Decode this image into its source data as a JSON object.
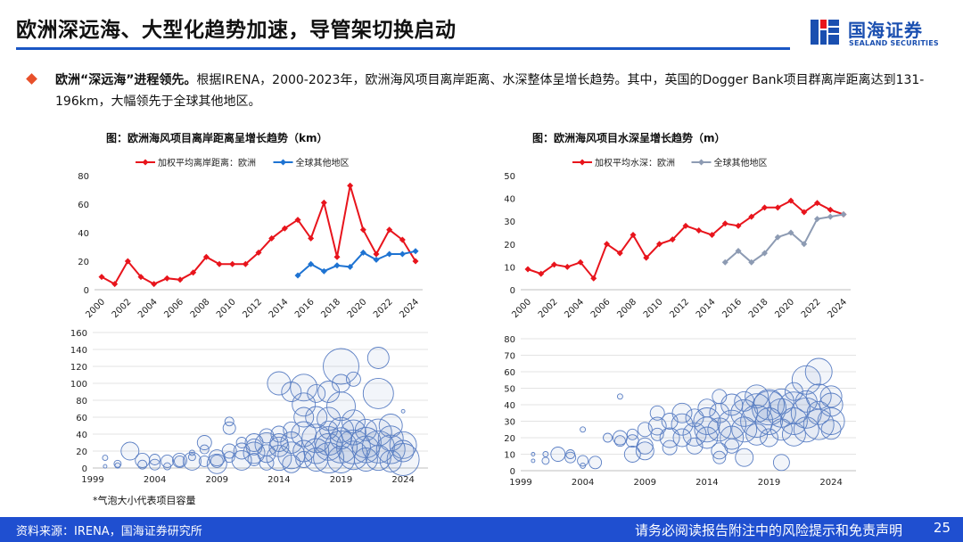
{
  "header": {
    "title": "欧洲深远海、大型化趋势加速，导管架切换启动",
    "logo_cn": "国海证券",
    "logo_en": "SEALAND SECURITIES"
  },
  "bullet": {
    "lead": "欧洲“深远海”进程领先。",
    "body": "根据IRENA，2000-2023年，欧洲海风项目离岸距离、水深整体呈增长趋势。其中，英国的Dogger Bank项目群离岸距离达到131-196km，大幅领先于全球其他地区。"
  },
  "footnote": "*气泡大小代表项目容量",
  "footer": {
    "source": "资料来源：IRENA，国海证券研究所",
    "disclaimer": "请务必阅读报告附注中的风险提示和免责声明",
    "page": "25"
  },
  "colors": {
    "brand": "#1f4fd0",
    "europe": "#e8141c",
    "rest_blue": "#1e73d2",
    "rest_gray": "#8d9bb3",
    "bubble": "#5b7fc4"
  },
  "chart_data": [
    {
      "type": "line",
      "title": "图：欧洲海风项目离岸距离呈增长趋势（km）",
      "ylim": [
        0,
        80
      ],
      "yticks": [
        0,
        20,
        40,
        60,
        80
      ],
      "x": [
        2000,
        2001,
        2002,
        2003,
        2004,
        2005,
        2006,
        2007,
        2008,
        2009,
        2010,
        2011,
        2012,
        2013,
        2014,
        2015,
        2016,
        2017,
        2018,
        2019,
        2020,
        2021,
        2022,
        2023,
        2024
      ],
      "xticks": [
        "2000",
        "2002",
        "2004",
        "2006",
        "2008",
        "2010",
        "2012",
        "2014",
        "2016",
        "2018",
        "2020",
        "2022",
        "2024"
      ],
      "legend_position": "top",
      "series": [
        {
          "name": "加权平均离岸距离：欧洲",
          "color": "#e8141c",
          "marker": "diamond",
          "values": [
            9,
            4,
            20,
            9,
            4,
            8,
            7,
            12,
            23,
            18,
            18,
            18,
            26,
            36,
            43,
            49,
            36,
            61,
            23,
            73,
            42,
            25,
            42,
            35,
            20
          ]
        },
        {
          "name": "全球其他地区",
          "color": "#1e73d2",
          "marker": "diamond",
          "values": [
            null,
            null,
            null,
            null,
            null,
            null,
            null,
            null,
            null,
            null,
            null,
            null,
            null,
            null,
            null,
            10,
            18,
            13,
            17,
            16,
            26,
            21,
            25,
            25,
            27
          ]
        }
      ]
    },
    {
      "type": "line",
      "title": "图：欧洲海风项目水深呈增长趋势（m）",
      "ylim": [
        0,
        50
      ],
      "yticks": [
        0,
        10,
        20,
        30,
        40,
        50
      ],
      "x": [
        2000,
        2001,
        2002,
        2003,
        2004,
        2005,
        2006,
        2007,
        2008,
        2009,
        2010,
        2011,
        2012,
        2013,
        2014,
        2015,
        2016,
        2017,
        2018,
        2019,
        2020,
        2021,
        2022,
        2023,
        2024
      ],
      "xticks": [
        "2000",
        "2002",
        "2004",
        "2006",
        "2008",
        "2010",
        "2012",
        "2014",
        "2016",
        "2018",
        "2020",
        "2022",
        "2024"
      ],
      "legend_position": "top",
      "series": [
        {
          "name": "加权平均水深：欧洲",
          "color": "#e8141c",
          "marker": "diamond",
          "values": [
            9,
            7,
            11,
            10,
            12,
            5,
            20,
            16,
            24,
            14,
            20,
            22,
            28,
            26,
            24,
            29,
            28,
            32,
            36,
            36,
            39,
            34,
            38,
            35,
            33
          ]
        },
        {
          "name": "全球其他地区",
          "color": "#8d9bb3",
          "marker": "diamond",
          "values": [
            null,
            null,
            null,
            null,
            null,
            null,
            null,
            null,
            null,
            null,
            null,
            null,
            null,
            null,
            null,
            12,
            17,
            12,
            16,
            23,
            25,
            20,
            31,
            32,
            33
          ]
        }
      ]
    },
    {
      "type": "scatter",
      "subtype": "bubble",
      "xlim": [
        1999,
        2026
      ],
      "ylim": [
        0,
        160
      ],
      "xticks": [
        1999,
        2004,
        2009,
        2014,
        2019,
        2024
      ],
      "yticks": [
        0,
        20,
        40,
        60,
        80,
        100,
        120,
        140,
        160
      ],
      "points": [
        [
          2000,
          12,
          3
        ],
        [
          2000,
          2,
          2
        ],
        [
          2001,
          5,
          4
        ],
        [
          2001,
          3,
          3
        ],
        [
          2002,
          20,
          10
        ],
        [
          2003,
          9,
          8
        ],
        [
          2003,
          4,
          5
        ],
        [
          2004,
          4,
          6
        ],
        [
          2004,
          10,
          6
        ],
        [
          2005,
          8,
          7
        ],
        [
          2005,
          2,
          4
        ],
        [
          2006,
          8,
          6
        ],
        [
          2006,
          9,
          8
        ],
        [
          2007,
          18,
          3
        ],
        [
          2007,
          13,
          4
        ],
        [
          2007,
          8,
          10
        ],
        [
          2008,
          22,
          5
        ],
        [
          2008,
          8,
          6
        ],
        [
          2008,
          30,
          8
        ],
        [
          2009,
          12,
          9
        ],
        [
          2009,
          8,
          7
        ],
        [
          2009,
          5,
          11
        ],
        [
          2010,
          55,
          5
        ],
        [
          2010,
          47,
          7
        ],
        [
          2010,
          13,
          6
        ],
        [
          2010,
          20,
          8
        ],
        [
          2011,
          20,
          9
        ],
        [
          2011,
          9,
          11
        ],
        [
          2011,
          30,
          6
        ],
        [
          2012,
          18,
          12
        ],
        [
          2012,
          25,
          9
        ],
        [
          2012,
          30,
          10
        ],
        [
          2012,
          10,
          7
        ],
        [
          2013,
          17,
          10
        ],
        [
          2013,
          28,
          13
        ],
        [
          2013,
          6,
          8
        ],
        [
          2013,
          38,
          8
        ],
        [
          2014,
          30,
          10
        ],
        [
          2014,
          100,
          13
        ],
        [
          2014,
          40,
          9
        ],
        [
          2014,
          12,
          14
        ],
        [
          2014,
          25,
          11
        ],
        [
          2015,
          90,
          11
        ],
        [
          2015,
          30,
          12
        ],
        [
          2015,
          15,
          15
        ],
        [
          2015,
          45,
          9
        ],
        [
          2015,
          5,
          10
        ],
        [
          2016,
          75,
          13
        ],
        [
          2016,
          60,
          11
        ],
        [
          2016,
          40,
          14
        ],
        [
          2016,
          20,
          12
        ],
        [
          2016,
          95,
          15
        ],
        [
          2016,
          10,
          9
        ],
        [
          2017,
          35,
          16
        ],
        [
          2017,
          60,
          12
        ],
        [
          2017,
          20,
          14
        ],
        [
          2017,
          88,
          10
        ],
        [
          2017,
          10,
          13
        ],
        [
          2018,
          25,
          15
        ],
        [
          2018,
          58,
          13
        ],
        [
          2018,
          90,
          12
        ],
        [
          2018,
          45,
          10
        ],
        [
          2018,
          12,
          17
        ],
        [
          2018,
          32,
          16
        ],
        [
          2019,
          120,
          20
        ],
        [
          2019,
          73,
          16
        ],
        [
          2019,
          45,
          14
        ],
        [
          2019,
          25,
          18
        ],
        [
          2019,
          10,
          15
        ],
        [
          2019,
          100,
          10
        ],
        [
          2019,
          35,
          12
        ],
        [
          2020,
          42,
          14
        ],
        [
          2020,
          25,
          19
        ],
        [
          2020,
          15,
          16
        ],
        [
          2020,
          105,
          8
        ],
        [
          2020,
          55,
          13
        ],
        [
          2021,
          22,
          15
        ],
        [
          2021,
          10,
          13
        ],
        [
          2021,
          30,
          17
        ],
        [
          2021,
          45,
          12
        ],
        [
          2022,
          88,
          17
        ],
        [
          2022,
          42,
          15
        ],
        [
          2022,
          25,
          18
        ],
        [
          2022,
          12,
          14
        ],
        [
          2022,
          130,
          12
        ],
        [
          2023,
          35,
          14
        ],
        [
          2023,
          22,
          16
        ],
        [
          2023,
          8,
          12
        ],
        [
          2023,
          50,
          13
        ],
        [
          2024,
          27,
          15
        ],
        [
          2024,
          67,
          2
        ],
        [
          2024,
          10,
          18
        ],
        [
          2024,
          20,
          12
        ]
      ]
    },
    {
      "type": "scatter",
      "subtype": "bubble",
      "xlim": [
        1999,
        2026
      ],
      "ylim": [
        0,
        80
      ],
      "xticks": [
        1999,
        2004,
        2009,
        2014,
        2019,
        2024
      ],
      "yticks": [
        0,
        10,
        20,
        30,
        40,
        50,
        60,
        70,
        80
      ],
      "points": [
        [
          2000,
          10,
          2
        ],
        [
          2000,
          6,
          2
        ],
        [
          2001,
          10,
          3
        ],
        [
          2001,
          6,
          4
        ],
        [
          2002,
          10,
          8
        ],
        [
          2003,
          8,
          6
        ],
        [
          2003,
          10,
          5
        ],
        [
          2004,
          25,
          3
        ],
        [
          2004,
          3,
          3
        ],
        [
          2004,
          6,
          6
        ],
        [
          2005,
          5,
          7
        ],
        [
          2006,
          20,
          5
        ],
        [
          2007,
          45,
          3
        ],
        [
          2007,
          18,
          6
        ],
        [
          2007,
          20,
          8
        ],
        [
          2008,
          22,
          6
        ],
        [
          2008,
          10,
          9
        ],
        [
          2008,
          18,
          7
        ],
        [
          2009,
          12,
          10
        ],
        [
          2009,
          25,
          8
        ],
        [
          2009,
          15,
          9
        ],
        [
          2010,
          35,
          8
        ],
        [
          2010,
          27,
          10
        ],
        [
          2010,
          22,
          7
        ],
        [
          2011,
          20,
          11
        ],
        [
          2011,
          30,
          9
        ],
        [
          2011,
          14,
          8
        ],
        [
          2012,
          28,
          12
        ],
        [
          2012,
          20,
          10
        ],
        [
          2012,
          35,
          11
        ],
        [
          2013,
          22,
          13
        ],
        [
          2013,
          32,
          10
        ],
        [
          2013,
          15,
          9
        ],
        [
          2014,
          25,
          14
        ],
        [
          2014,
          38,
          10
        ],
        [
          2014,
          20,
          12
        ],
        [
          2014,
          30,
          15
        ],
        [
          2015,
          45,
          8
        ],
        [
          2015,
          25,
          13
        ],
        [
          2015,
          35,
          11
        ],
        [
          2015,
          12,
          9
        ],
        [
          2015,
          8,
          7
        ],
        [
          2016,
          28,
          16
        ],
        [
          2016,
          40,
          12
        ],
        [
          2016,
          20,
          13
        ],
        [
          2016,
          15,
          8
        ],
        [
          2017,
          35,
          15
        ],
        [
          2017,
          42,
          11
        ],
        [
          2017,
          25,
          14
        ],
        [
          2017,
          8,
          10
        ],
        [
          2018,
          38,
          16
        ],
        [
          2018,
          30,
          18
        ],
        [
          2018,
          22,
          12
        ],
        [
          2018,
          45,
          13
        ],
        [
          2019,
          40,
          17
        ],
        [
          2019,
          30,
          15
        ],
        [
          2019,
          38,
          19
        ],
        [
          2019,
          20,
          10
        ],
        [
          2020,
          35,
          16
        ],
        [
          2020,
          42,
          14
        ],
        [
          2020,
          25,
          12
        ],
        [
          2020,
          5,
          9
        ],
        [
          2021,
          38,
          18
        ],
        [
          2021,
          30,
          15
        ],
        [
          2021,
          22,
          13
        ],
        [
          2021,
          48,
          10
        ],
        [
          2022,
          55,
          16
        ],
        [
          2022,
          35,
          17
        ],
        [
          2022,
          25,
          14
        ],
        [
          2022,
          42,
          12
        ],
        [
          2023,
          60,
          15
        ],
        [
          2023,
          28,
          17
        ],
        [
          2023,
          45,
          14
        ],
        [
          2023,
          35,
          13
        ],
        [
          2024,
          30,
          15
        ],
        [
          2024,
          40,
          13
        ],
        [
          2024,
          45,
          12
        ],
        [
          2024,
          25,
          11
        ]
      ]
    }
  ]
}
